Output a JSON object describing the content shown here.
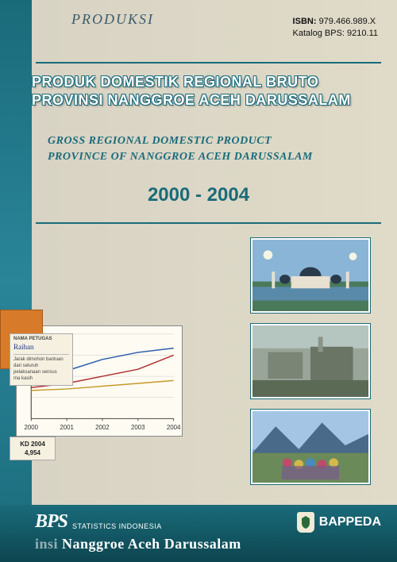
{
  "handwritten_note": "PRODUKSI",
  "isbn": {
    "label": "ISBN:",
    "value": "979.466.989.X"
  },
  "catalog": {
    "label": "Katalog BPS:",
    "value": "9210.11"
  },
  "title_id_line1": "PRODUK DOMESTIK REGIONAL BRUTO",
  "title_id_line2": "PROVINSI NANGGROE ACEH DARUSSALAM",
  "title_en_line1": "GROSS REGIONAL DOMESTIC PRODUCT",
  "title_en_line2": "PROVINCE OF NANGGROE ACEH DARUSSALAM",
  "year_range": "2000 - 2004",
  "chart": {
    "type": "line",
    "x_labels": [
      "2000",
      "2001",
      "2002",
      "2003",
      "2004"
    ],
    "series": [
      {
        "color": "#2a5caa",
        "width": 1.5,
        "values": [
          28,
          34,
          42,
          47,
          50
        ]
      },
      {
        "color": "#b03030",
        "width": 1.5,
        "values": [
          22,
          25,
          30,
          35,
          45
        ]
      },
      {
        "color": "#c79a2a",
        "width": 1.5,
        "values": [
          20,
          21,
          23,
          25,
          27
        ]
      }
    ],
    "ylim": [
      0,
      60
    ],
    "background": "#fdfbf2",
    "grid_color": "#cccccc",
    "axis_color": "#333333"
  },
  "library_card": {
    "field1_label": "NAMA PETUGAS",
    "field1_value": "Raihan",
    "note_lines": [
      "Jarak dimohon bantuan dari seluruh",
      "pelaksanaan sensus",
      "ma kasih"
    ]
  },
  "call_number": {
    "line1": "KD 2004",
    "line2": "4,954"
  },
  "footer": {
    "bps_logo": "BPS",
    "bps_sub": "STATISTICS INDONESIA",
    "bappeda": "BAPPEDA",
    "province_prefix": "insi",
    "province_text": "Nanggroe Aceh Darussalam"
  },
  "colors": {
    "teal": "#1a6b7a",
    "paper": "#d8d3c4",
    "white": "#ffffff"
  }
}
